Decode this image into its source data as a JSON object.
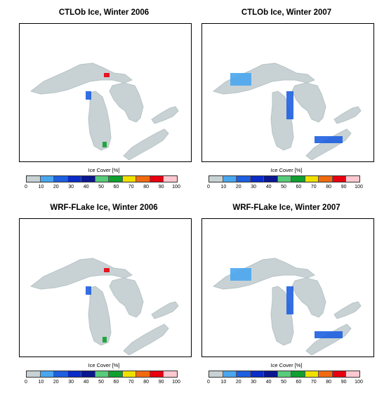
{
  "panels": [
    {
      "title": "CTLOb Ice, Winter 2006",
      "cbar_label": "Ice Cover [%]"
    },
    {
      "title": "CTLOb Ice, Winter 2007",
      "cbar_label": "Ice Cover [%]"
    },
    {
      "title": "WRF-FLake Ice, Winter 2006",
      "cbar_label": "Ice Cover [%]"
    },
    {
      "title": "WRF-FLake Ice, Winter 2007",
      "cbar_label": "Ice Cover [%]"
    }
  ],
  "colorbar": {
    "ticks": [
      "0",
      "10",
      "20",
      "30",
      "40",
      "50",
      "60",
      "70",
      "80",
      "90",
      "100"
    ],
    "colors": [
      "#c8d2d4",
      "#4aa6ee",
      "#1e5fe0",
      "#0a2cc8",
      "#0a1890",
      "#58cc7a",
      "#10a030",
      "#f0e000",
      "#f06a10",
      "#e80010",
      "#ffc8d0"
    ]
  },
  "lake_color": "#c8d2d4"
}
